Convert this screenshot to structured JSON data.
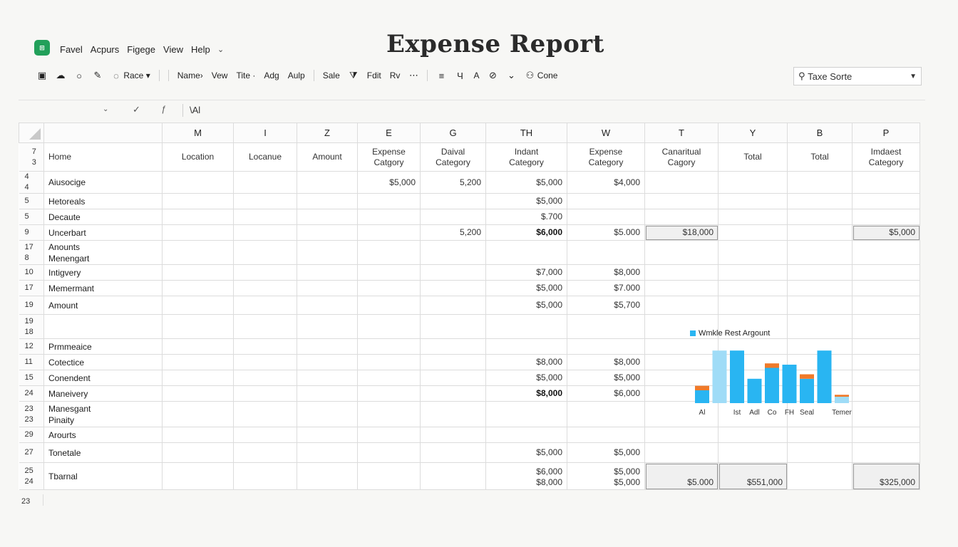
{
  "app": {
    "logo_text": "⊞",
    "title": "Expense Report",
    "menu": [
      "Favel",
      "Acpurs",
      "Figege",
      "View",
      "Help"
    ]
  },
  "toolbar": {
    "font_name": "Race",
    "items_a": [
      "Name›",
      "Vew",
      "Tite ·",
      "Adg",
      "Aulp"
    ],
    "items_b": [
      "Sale",
      "Fdit",
      "Rv"
    ],
    "align_label": "A",
    "user_label": "Cone"
  },
  "search": {
    "value": "Taxe Sorte"
  },
  "formula_bar": {
    "formula": "\\Al"
  },
  "grid": {
    "col_letters": [
      "M",
      "I",
      "Z",
      "E",
      "G",
      "TH",
      "W",
      "T",
      "Y",
      "B",
      "P"
    ],
    "headers": {
      "rownums": "7\n3",
      "first": "Home",
      "cols": [
        "Location",
        "Locanue",
        "Amount",
        "Expense\nCatgory",
        "Daival\nCategory",
        "Indant\nCategory",
        "Expense\nCategory",
        "Canaritual\nCagory",
        "Total",
        "Total",
        "Imdaest\nCategory"
      ]
    },
    "rows": [
      {
        "rn": "4\n4",
        "label": "Aiusocige",
        "e": "$5,000",
        "g": "5,200",
        "th": "$5,000",
        "w": "$4,000"
      },
      {
        "rn": "5",
        "label": "Hetoreals",
        "th": "$5,000"
      },
      {
        "rn": "5",
        "label": "Decaute",
        "th": "$.700"
      },
      {
        "rn": "9",
        "label": "Uncerbart",
        "g": "5,200",
        "th": "$6,000",
        "w": "$5.000",
        "t": "$18,000",
        "p": "$5,000"
      },
      {
        "rn": "17\n8",
        "label": "Anounts\nMenengart"
      },
      {
        "rn": "10",
        "label": "Intigvery",
        "th": "$7,000",
        "w": "$8,000"
      },
      {
        "rn": "17",
        "label": "Memermant",
        "th": "$5,000",
        "w": "$7.000"
      },
      {
        "rn": "19",
        "label": "Amount",
        "th": "$5,000",
        "w": "$5,700"
      },
      {
        "rn": "19\n18",
        "label": ""
      },
      {
        "rn": "12",
        "label": "Prmmeaice"
      },
      {
        "rn": "11",
        "label": "Cotectice",
        "th": "$8,000",
        "w": "$8,000"
      },
      {
        "rn": "15",
        "label": "Conendent",
        "th": "$5,000",
        "w": "$5,000"
      },
      {
        "rn": "24",
        "label": "Maneivery",
        "th": "$8,000",
        "w": "$6,000"
      },
      {
        "rn": "23\n23",
        "label": "Manesgant\nPinaity"
      },
      {
        "rn": "29",
        "label": "Arourts"
      },
      {
        "rn": "27",
        "label": "Tonetale",
        "th": "$5,000",
        "w": "$5,000"
      },
      {
        "rn": "25\n24",
        "label": "Tbarnal",
        "th": "$6,000\n$8,000",
        "w": "$5,000\n$5,000",
        "t": "$5.000",
        "y": "$551,000",
        "p": "$325,000"
      }
    ],
    "tail_rownum": "23"
  },
  "chart_data": {
    "type": "bar",
    "legend": "Wmkle Rest Argount",
    "categories": [
      "Al",
      "",
      "Ist",
      "Adl",
      "Co",
      "FH",
      "Seal",
      "",
      "Temer"
    ],
    "series": [
      {
        "name": "Wmkle Rest Argount",
        "color": "#29b5f2",
        "values": [
          20,
          82,
          82,
          38,
          55,
          60,
          38,
          82,
          10
        ]
      },
      {
        "color": "#f07a2a",
        "values": [
          7,
          0,
          0,
          0,
          7,
          0,
          7,
          0,
          3
        ]
      },
      {
        "color": "#9fdcf7",
        "values": [
          0,
          0,
          0,
          0,
          0,
          0,
          0,
          0,
          0
        ]
      }
    ],
    "light_bars": [
      1,
      8
    ],
    "ylim": [
      0,
      100
    ]
  }
}
